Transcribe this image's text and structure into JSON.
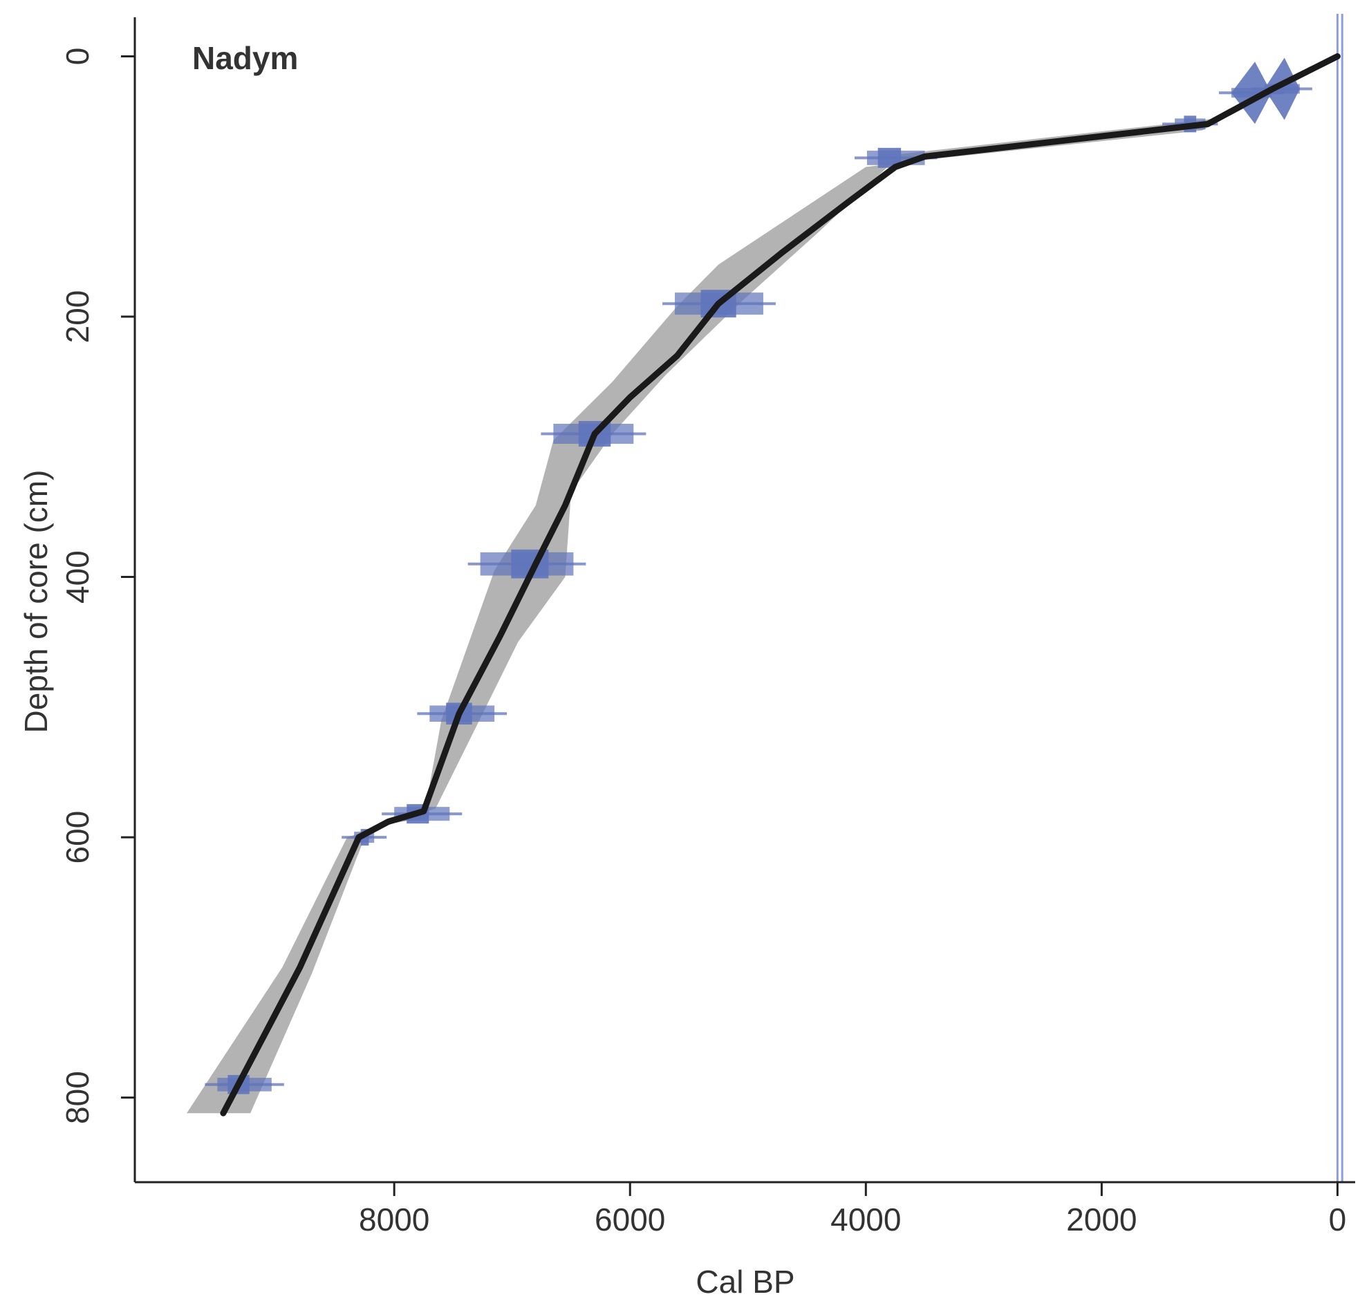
{
  "chart_data": {
    "type": "line",
    "panel_label": "Nadym",
    "xlabel": "Cal BP",
    "ylabel": "Depth of core (cm)",
    "xlim": [
      10200,
      -150
    ],
    "ylim": [
      865,
      -30
    ],
    "x_ticks": [
      8000,
      6000,
      4000,
      2000,
      0
    ],
    "y_ticks": [
      0,
      200,
      400,
      600,
      800
    ],
    "x_axis_reversed": true,
    "y_axis_reversed": true,
    "colors": {
      "median": "#1a1a1a",
      "envelope": "#b3b3b3",
      "dates": "#5f74bb",
      "surface_lines": "#8d9fe0"
    },
    "series": [
      {
        "values": [
          {
            "x": 0,
            "y": 0
          },
          {
            "x": 550,
            "y": 25
          },
          {
            "x": 1100,
            "y": 52
          },
          {
            "x": 3500,
            "y": 77
          },
          {
            "x": 3750,
            "y": 85
          },
          {
            "x": 4150,
            "y": 112
          },
          {
            "x": 4700,
            "y": 150
          },
          {
            "x": 5250,
            "y": 190
          },
          {
            "x": 5600,
            "y": 230
          },
          {
            "x": 6000,
            "y": 262
          },
          {
            "x": 6300,
            "y": 290
          },
          {
            "x": 6550,
            "y": 345
          },
          {
            "x": 6800,
            "y": 390
          },
          {
            "x": 7100,
            "y": 445
          },
          {
            "x": 7450,
            "y": 505
          },
          {
            "x": 7750,
            "y": 580
          },
          {
            "x": 8050,
            "y": 588
          },
          {
            "x": 8300,
            "y": 600
          },
          {
            "x": 8800,
            "y": 700
          },
          {
            "x": 9450,
            "y": 812
          }
        ]
      }
    ],
    "envelope": {
      "upper_young": [
        {
          "x": 0,
          "y": -2
        },
        {
          "x": 1050,
          "y": 48
        },
        {
          "x": 3500,
          "y": 73
        },
        {
          "x": 3700,
          "y": 75
        },
        {
          "x": 4400,
          "y": 135
        },
        {
          "x": 5050,
          "y": 188
        },
        {
          "x": 5700,
          "y": 245
        },
        {
          "x": 6150,
          "y": 290
        },
        {
          "x": 6500,
          "y": 335
        },
        {
          "x": 6550,
          "y": 400
        },
        {
          "x": 6950,
          "y": 450
        },
        {
          "x": 7250,
          "y": 505
        },
        {
          "x": 7650,
          "y": 578
        },
        {
          "x": 8000,
          "y": 588
        },
        {
          "x": 8250,
          "y": 600
        },
        {
          "x": 8700,
          "y": 705
        },
        {
          "x": 9220,
          "y": 812
        }
      ],
      "lower_old": [
        {
          "x": 9760,
          "y": 812
        },
        {
          "x": 8950,
          "y": 700
        },
        {
          "x": 8400,
          "y": 600
        },
        {
          "x": 8050,
          "y": 590
        },
        {
          "x": 7750,
          "y": 585
        },
        {
          "x": 7600,
          "y": 510
        },
        {
          "x": 7150,
          "y": 395
        },
        {
          "x": 6800,
          "y": 345
        },
        {
          "x": 6650,
          "y": 295
        },
        {
          "x": 6150,
          "y": 250
        },
        {
          "x": 5600,
          "y": 192
        },
        {
          "x": 5250,
          "y": 160
        },
        {
          "x": 4000,
          "y": 85
        },
        {
          "x": 3550,
          "y": 80
        },
        {
          "x": 1150,
          "y": 57
        },
        {
          "x": 0,
          "y": 2
        }
      ]
    },
    "dated_levels": [
      {
        "depth": 25,
        "age_mean": 450,
        "age_range": [
          320,
          620
        ],
        "shape": "peak"
      },
      {
        "depth": 28,
        "age_mean": 700,
        "age_range": [
          560,
          900
        ],
        "shape": "peak"
      },
      {
        "depth": 52,
        "age_mean": 1250,
        "age_range": [
          1120,
          1380
        ],
        "shape": "box"
      },
      {
        "depth": 78,
        "age_mean": 3800,
        "age_range": [
          3500,
          3990
        ],
        "shape": "box"
      },
      {
        "depth": 190,
        "age_mean": 5250,
        "age_range": [
          4870,
          5620
        ],
        "shape": "box"
      },
      {
        "depth": 290,
        "age_mean": 6300,
        "age_range": [
          5970,
          6650
        ],
        "shape": "box"
      },
      {
        "depth": 390,
        "age_mean": 6850,
        "age_range": [
          6480,
          7270
        ],
        "shape": "box"
      },
      {
        "depth": 505,
        "age_mean": 7450,
        "age_range": [
          7150,
          7700
        ],
        "shape": "box"
      },
      {
        "depth": 582,
        "age_mean": 7800,
        "age_range": [
          7530,
          8000
        ],
        "shape": "box"
      },
      {
        "depth": 600,
        "age_mean": 8250,
        "age_range": [
          8170,
          8340
        ],
        "shape": "box"
      },
      {
        "depth": 790,
        "age_mean": 9320,
        "age_range": [
          9040,
          9500
        ],
        "shape": "box"
      }
    ],
    "surface_age_lines": [
      0,
      -40
    ],
    "grid": false,
    "legend": "none"
  }
}
